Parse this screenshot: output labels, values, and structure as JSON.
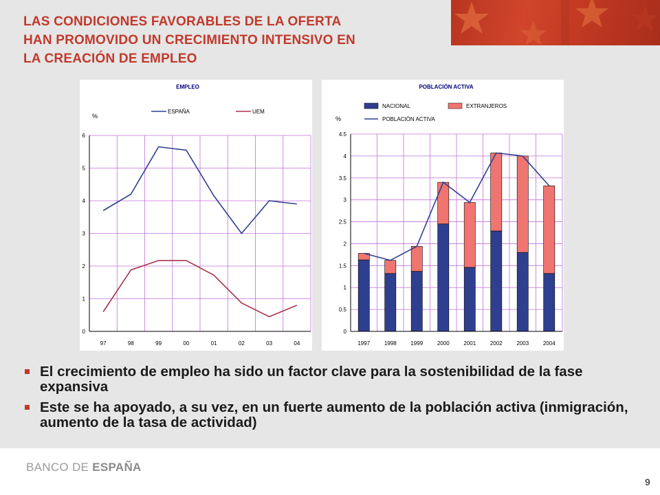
{
  "slide": {
    "title_lines": [
      "LAS CONDICIONES FAVORABLES DE LA OFERTA",
      "HAN PROMOVIDO UN CRECIMIENTO INTENSIVO EN",
      "LA CREACIÓN DE EMPLEO"
    ],
    "bullets": [
      "El crecimiento de empleo ha sido un factor clave para la sostenibilidad de la fase expansiva",
      "Este se ha apoyado, a su vez,  en un fuerte aumento de la población activa (inmigración, aumento de la tasa de actividad)"
    ],
    "footer": {
      "logo_part1": "BANCO DE ",
      "logo_part2": "ESPAÑA",
      "page_number": "9"
    },
    "colors": {
      "accent": "#c0392b",
      "banner": "#c23a22"
    }
  },
  "chart_data": [
    {
      "type": "line",
      "title": "EMPLEO",
      "ylabel": "%",
      "x": [
        "97",
        "98",
        "99",
        "00",
        "01",
        "02",
        "03",
        "04"
      ],
      "ylim": [
        0,
        6
      ],
      "yticks": [
        "0",
        "1",
        "2",
        "3",
        "4",
        "5",
        "6"
      ],
      "grid": true,
      "legend_position": "top",
      "series": [
        {
          "name": "ESPAÑA",
          "color": "#2f3f8f",
          "values": [
            3.7,
            4.2,
            5.65,
            5.55,
            4.15,
            3.0,
            4.0,
            3.9
          ]
        },
        {
          "name": "UEM",
          "color": "#a8344a",
          "values": [
            0.6,
            1.88,
            2.17,
            2.17,
            1.72,
            0.87,
            0.45,
            0.8
          ]
        }
      ]
    },
    {
      "type": "bar",
      "stacked": true,
      "title": "POBLACIÓN ACTIVA",
      "ylabel": "%",
      "categories": [
        "1997",
        "1998",
        "1999",
        "2000",
        "2001",
        "2002",
        "2003",
        "2004"
      ],
      "ylim": [
        0,
        4.5
      ],
      "yticks": [
        "0",
        "0.5",
        "1",
        "1.5",
        "2",
        "2.5",
        "3",
        "3.5",
        "4",
        "4.5"
      ],
      "grid": true,
      "legend_position": "top",
      "series": [
        {
          "name": "NACIONAL",
          "color": "#2f3f8f",
          "values": [
            1.63,
            1.32,
            1.37,
            2.45,
            1.46,
            2.29,
            1.8,
            1.32
          ]
        },
        {
          "name": "EXTRANJEROS",
          "color": "#f07570",
          "values": [
            0.15,
            0.3,
            0.57,
            0.95,
            1.48,
            1.78,
            2.2,
            2.0
          ]
        }
      ],
      "line_series": {
        "name": "POBLACIÓN ACTIVA",
        "color": "#2f3f8f",
        "values": [
          1.78,
          1.62,
          1.94,
          3.4,
          2.94,
          4.07,
          4.0,
          3.32
        ]
      }
    }
  ]
}
